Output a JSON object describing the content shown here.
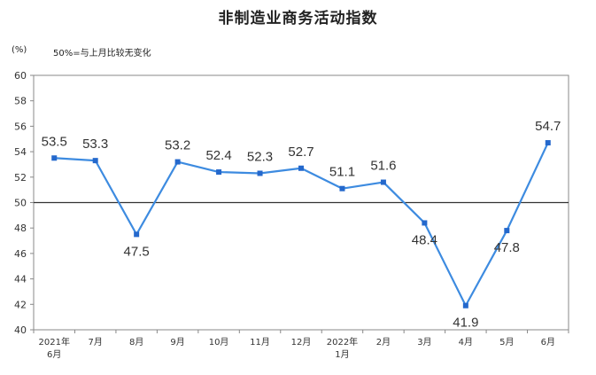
{
  "chart_data": {
    "type": "line",
    "title": "非制造业商务活动指数",
    "unit_label": "(%)",
    "note": "50%=与上月比较无变化",
    "categories": [
      [
        "2021年",
        "6月"
      ],
      [
        "7月"
      ],
      [
        "8月"
      ],
      [
        "9月"
      ],
      [
        "10月"
      ],
      [
        "11月"
      ],
      [
        "12月"
      ],
      [
        "2022年",
        "1月"
      ],
      [
        "2月"
      ],
      [
        "3月"
      ],
      [
        "4月"
      ],
      [
        "5月"
      ],
      [
        "6月"
      ]
    ],
    "series": [
      {
        "values": [
          53.5,
          53.3,
          47.5,
          53.2,
          52.4,
          52.3,
          52.7,
          51.1,
          51.6,
          48.4,
          41.9,
          47.8,
          54.7
        ]
      }
    ],
    "value_labels": [
      "53.5",
      "53.3",
      "47.5",
      "53.2",
      "52.4",
      "52.3",
      "52.7",
      "51.1",
      "51.6",
      "48.4",
      "41.9",
      "47.8",
      "54.7"
    ],
    "ylim": [
      40,
      60
    ],
    "yticks": [
      "40",
      "42",
      "44",
      "46",
      "48",
      "50",
      "52",
      "54",
      "56",
      "58",
      "60"
    ],
    "reference_line": 50,
    "line_color": "#3d8be0",
    "marker_color": "#2468cc",
    "axis_color": "#888888",
    "grid": false
  }
}
